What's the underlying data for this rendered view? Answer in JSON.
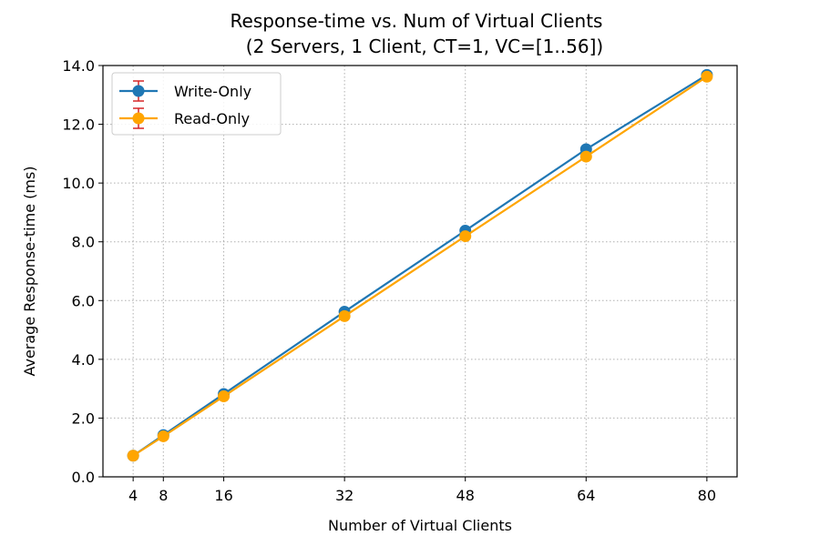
{
  "chart_data": {
    "type": "line",
    "title_line1": "Response-time vs. Num of Virtual Clients",
    "title_line2": "(2 Servers, 1 Client, CT=1, VC=[1..56])",
    "xlabel": "Number of Virtual Clients",
    "ylabel": "Average Response-time (ms)",
    "x": [
      4,
      8,
      16,
      32,
      48,
      64,
      80
    ],
    "x_ticks": [
      "4",
      "8",
      "16",
      "32",
      "48",
      "64",
      "80"
    ],
    "xlim": [
      0,
      84
    ],
    "ylim": [
      0,
      14
    ],
    "y_ticks": [
      "0.0",
      "2.0",
      "4.0",
      "6.0",
      "8.0",
      "10.0",
      "12.0",
      "14.0"
    ],
    "y_tick_values": [
      0,
      2,
      4,
      6,
      8,
      10,
      12,
      14
    ],
    "grid": true,
    "legend_position": "top-left",
    "series": [
      {
        "name": "Write-Only",
        "color": "#1f77b4",
        "errorbar_color": "#d62728",
        "values": [
          0.72,
          1.42,
          2.82,
          5.62,
          8.38,
          11.15,
          13.68
        ]
      },
      {
        "name": "Read-Only",
        "color": "#ffa500",
        "errorbar_color": "#d62728",
        "values": [
          0.72,
          1.38,
          2.74,
          5.47,
          8.19,
          10.9,
          13.62
        ]
      }
    ]
  }
}
